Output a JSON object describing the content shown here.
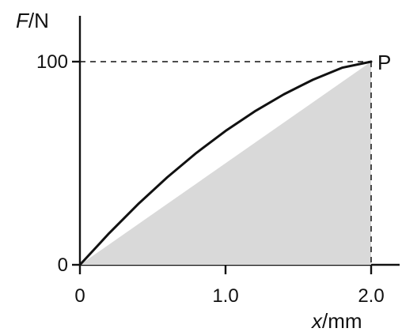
{
  "chart_data": {
    "type": "line",
    "title": "",
    "xlabel": "x/mm",
    "ylabel": "F/N",
    "xlim": [
      0,
      2.0
    ],
    "ylim": [
      0,
      100
    ],
    "x_ticks": [
      0,
      1.0,
      2.0
    ],
    "x_tick_labels": [
      "0",
      "1.0",
      "2.0"
    ],
    "y_ticks": [
      0,
      100
    ],
    "y_tick_labels": [
      "0",
      "100"
    ],
    "point_label": "P",
    "point": {
      "x": 2.0,
      "y": 100
    },
    "grid": false,
    "series": [
      {
        "x": [
          0.0,
          0.2,
          0.4,
          0.6,
          0.8,
          1.0,
          1.2,
          1.4,
          1.6,
          1.8,
          2.0
        ],
        "y": [
          0.0,
          15.5,
          29.9,
          43.1,
          55.1,
          65.9,
          75.5,
          83.9,
          91.1,
          97.0,
          100.0
        ]
      }
    ],
    "shaded_region": {
      "x": [
        0.0,
        2.0,
        2.0
      ],
      "y": [
        0.0,
        100.0,
        0.0
      ],
      "color": "#d9d9d9"
    },
    "reference_lines": {
      "horizontal_y": 100,
      "vertical_x": 2.0
    }
  }
}
